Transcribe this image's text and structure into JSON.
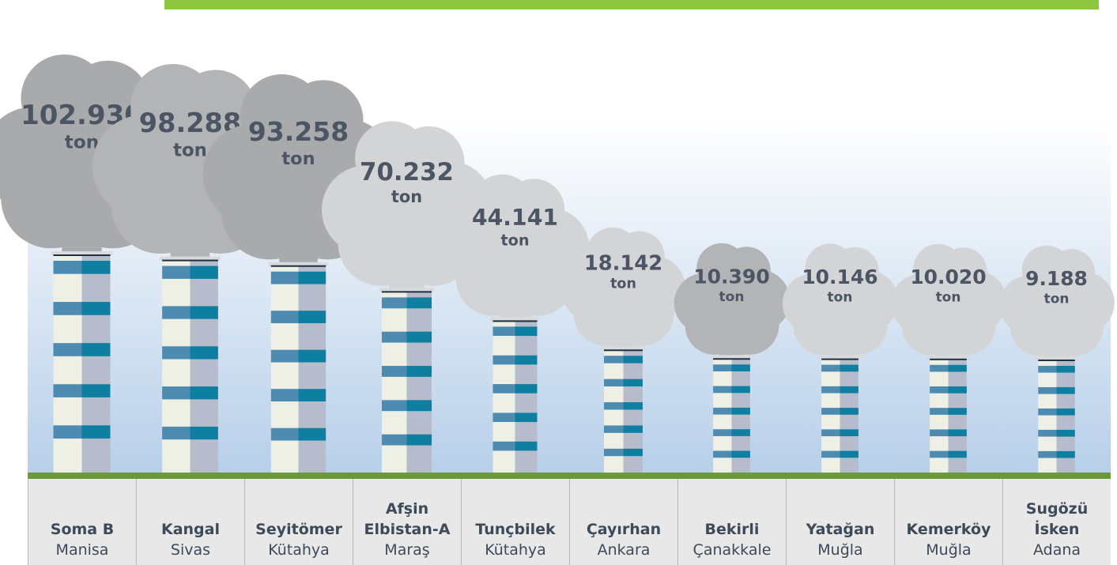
{
  "chart_data": {
    "type": "smokestack",
    "categories": [
      "Soma B",
      "Kangal",
      "Seyitömer",
      "Afşin Elbistan-A",
      "Tunçbilek",
      "Çayırhan",
      "Bekirli",
      "Yatağan",
      "Kemerköy",
      "Sugözü İsken"
    ],
    "locations": [
      "Manisa",
      "Sivas",
      "Kütahya",
      "Maraş",
      "Kütahya",
      "Ankara",
      "Çanakkale",
      "Muğla",
      "Muğla",
      "Adana"
    ],
    "values": [
      102930,
      98288,
      93258,
      70232,
      44141,
      18142,
      10390,
      10146,
      10020,
      9188
    ],
    "value_labels": [
      "102.930",
      "98.288",
      "93.258",
      "70.232",
      "44.141",
      "18.142",
      "10.390",
      "10.146",
      "10.020",
      "9.188"
    ],
    "unit": "ton",
    "cloud_colors": [
      "#a9aaac",
      "#b3b4b6",
      "#a9aaac",
      "#d3d4d6",
      "#d3d4d6",
      "#d3d4d6",
      "#b3b4b6",
      "#d3d4d6",
      "#d3d4d6",
      "#d3d4d6"
    ],
    "color": "#0e7fa0"
  }
}
